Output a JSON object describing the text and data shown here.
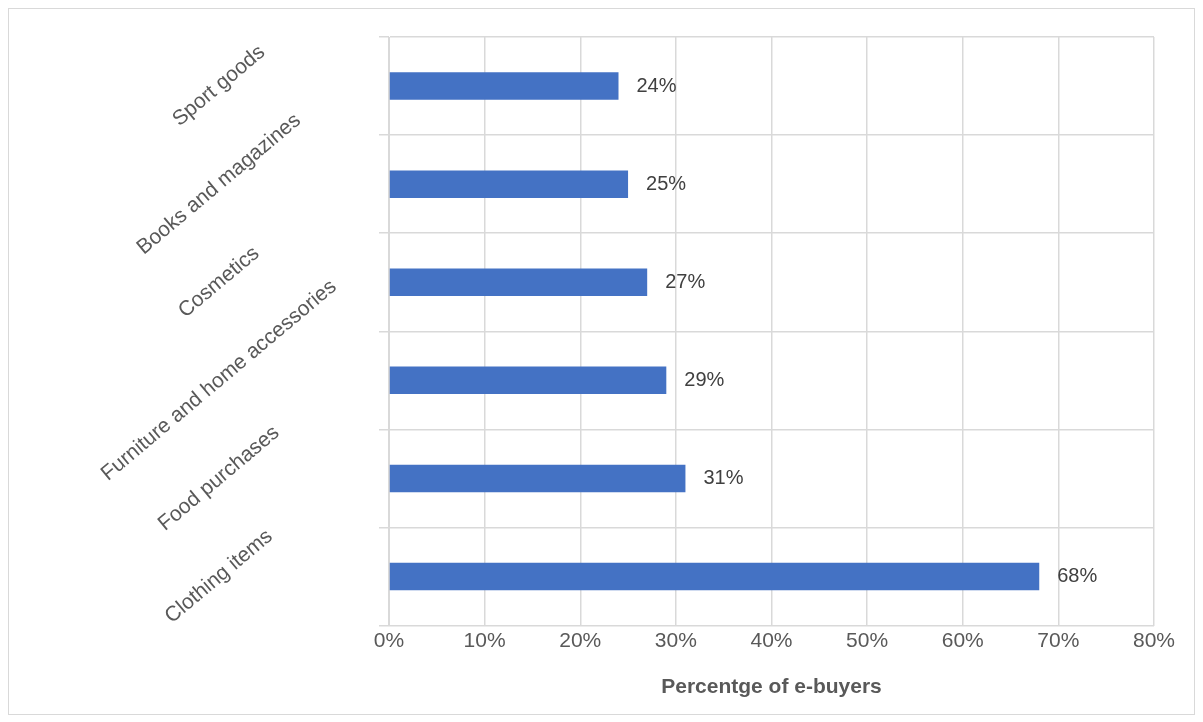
{
  "chart_data": {
    "type": "bar",
    "orientation": "horizontal",
    "categories": [
      "Sport goods",
      "Books and magazines",
      "Cosmetics",
      "Furniture and home accessories",
      "Food purchases",
      "Clothing items"
    ],
    "values": [
      24,
      25,
      27,
      29,
      31,
      68
    ],
    "value_labels": [
      "24%",
      "25%",
      "27%",
      "29%",
      "31%",
      "68%"
    ],
    "color": "#4472c4",
    "xlabel": "Percentge of e-buyers",
    "xlim": [
      0,
      80
    ],
    "xticks": [
      {
        "value": 0,
        "label": "0%"
      },
      {
        "value": 10,
        "label": "10%"
      },
      {
        "value": 20,
        "label": "20%"
      },
      {
        "value": 30,
        "label": "30%"
      },
      {
        "value": 40,
        "label": "40%"
      },
      {
        "value": 50,
        "label": "50%"
      },
      {
        "value": 60,
        "label": "60%"
      },
      {
        "value": 70,
        "label": "70%"
      },
      {
        "value": 80,
        "label": "80%"
      }
    ],
    "grid": true
  }
}
